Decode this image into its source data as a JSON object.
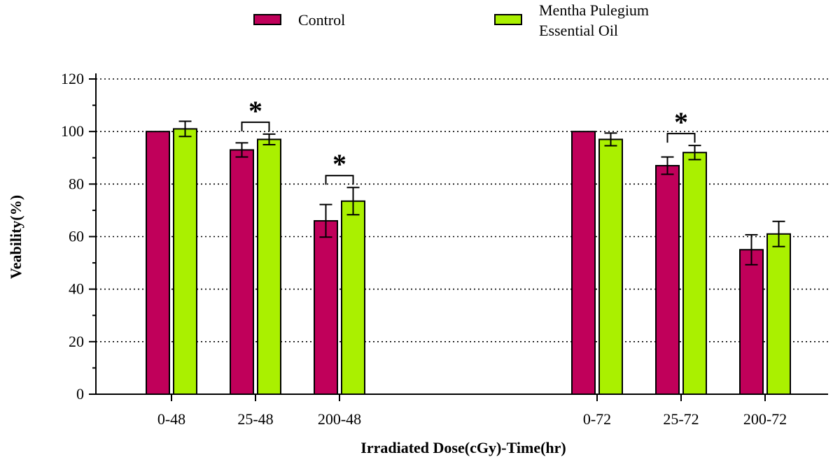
{
  "chart_data": {
    "type": "bar",
    "xlabel": "Irradiated Dose(cGy)-Time(hr)",
    "ylabel": "Veability(%)",
    "ylim": [
      0,
      120
    ],
    "yticks": [
      "0",
      "20",
      "40",
      "60",
      "80",
      "100",
      "120"
    ],
    "grid": "horizontal dotted",
    "legend_position": "top",
    "categories": [
      "0-48",
      "25-48",
      "200-48",
      "0-72",
      "25-72",
      "200-72"
    ],
    "series": [
      {
        "name": "Control",
        "color": "#c0005a",
        "values": [
          100,
          93,
          66,
          100,
          87,
          55
        ],
        "errors": [
          0,
          2.7,
          6.2,
          0,
          3.3,
          5.7
        ]
      },
      {
        "name": "Mentha Pulegium Essential Oil",
        "name_lines": [
          "Mentha Pulegium",
          "Essential Oil"
        ],
        "color": "#aaf000",
        "values": [
          101,
          97,
          73.5,
          97,
          92,
          61
        ],
        "errors": [
          2.9,
          2,
          5.2,
          2.4,
          2.7,
          4.8
        ]
      }
    ],
    "annotations": [
      {
        "category": "25-48",
        "text": "*"
      },
      {
        "category": "200-48",
        "text": "*"
      },
      {
        "category": "25-72",
        "text": "*"
      }
    ]
  }
}
